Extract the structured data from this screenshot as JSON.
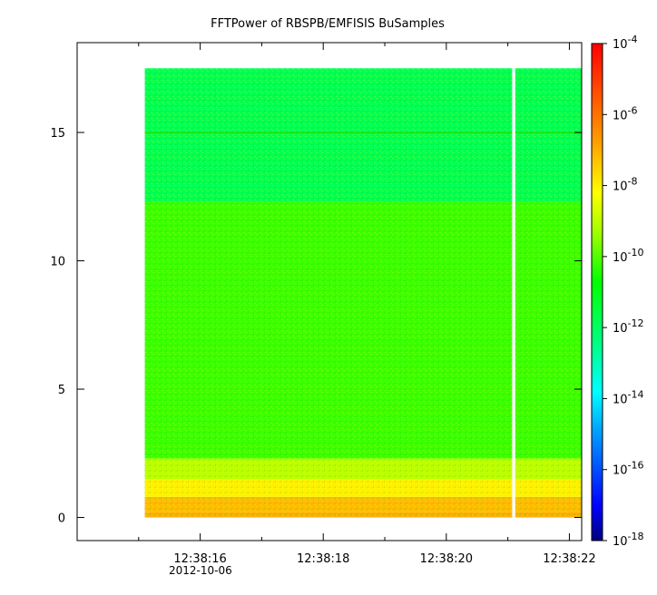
{
  "chart_data": {
    "type": "heatmap",
    "title": "FFTPower of RBSPB/EMFISIS  BuSamples",
    "xlabel": "",
    "ylabel": "",
    "y_ticks": [
      {
        "value": 0,
        "label": "0"
      },
      {
        "value": 5,
        "label": "5"
      },
      {
        "value": 10,
        "label": "10"
      },
      {
        "value": 15,
        "label": "15"
      }
    ],
    "x_ticks": [
      {
        "value": "12:38:16",
        "label": "12:38:16"
      },
      {
        "value": "12:38:18",
        "label": "12:38:18"
      },
      {
        "value": "12:38:20",
        "label": "12:38:20"
      },
      {
        "value": "12:38:22",
        "label": "12:38:22"
      }
    ],
    "x_date_label": "2012-10-06",
    "xlim": [
      "12:38:14",
      "12:38:22.2"
    ],
    "ylim": [
      -0.9,
      18.5
    ],
    "data_extent": {
      "x": [
        "12:38:15.1",
        "12:38:22.2"
      ],
      "y": [
        0,
        17.5
      ]
    },
    "data_gap": {
      "x": [
        "12:38:21.07",
        "12:38:21.12"
      ]
    },
    "colorbar": {
      "scale": "log",
      "range": [
        1e-18,
        0.0001
      ],
      "ticks": [
        {
          "base": "10",
          "exp": "-4",
          "value": 0.0001
        },
        {
          "base": "10",
          "exp": "-6",
          "value": 1e-06
        },
        {
          "base": "10",
          "exp": "-8",
          "value": 1e-08
        },
        {
          "base": "10",
          "exp": "-10",
          "value": 1e-10
        },
        {
          "base": "10",
          "exp": "-12",
          "value": 1e-12
        },
        {
          "base": "10",
          "exp": "-14",
          "value": 1e-14
        },
        {
          "base": "10",
          "exp": "-16",
          "value": 1e-16
        },
        {
          "base": "10",
          "exp": "-18",
          "value": 1e-18
        }
      ]
    },
    "bands": [
      {
        "y": [
          0,
          0.2
        ],
        "log10_power": -7.0
      },
      {
        "y": [
          0.2,
          0.8
        ],
        "log10_power": -7.2
      },
      {
        "y": [
          0.8,
          1.5
        ],
        "log10_power": -8.0
      },
      {
        "y": [
          1.5,
          2.3
        ],
        "log10_power": -9.0
      },
      {
        "y": [
          2.3,
          12.3
        ],
        "log10_power": -10.2
      },
      {
        "y": [
          12.3,
          17.5
        ],
        "log10_power": -11.8
      }
    ]
  }
}
